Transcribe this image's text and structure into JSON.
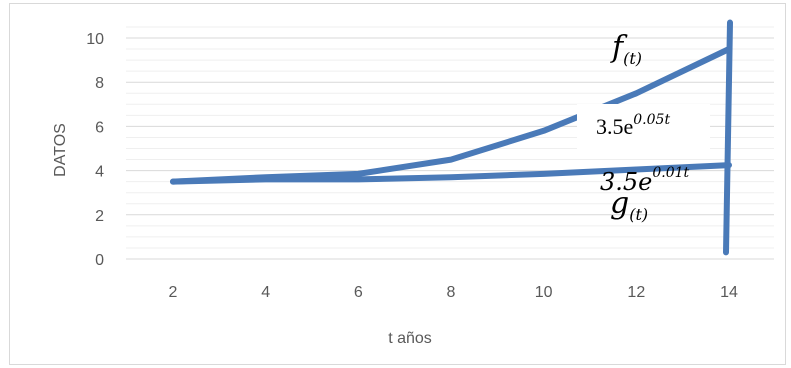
{
  "chart_data": {
    "type": "line",
    "x": [
      2,
      4,
      6,
      8,
      10,
      12,
      14
    ],
    "series": [
      {
        "name": "f(t) = 3.5e^0.05t",
        "values": [
          3.5,
          3.7,
          3.85,
          4.5,
          5.8,
          7.5,
          9.5
        ],
        "color": "#4a7ab8"
      },
      {
        "name": "g(t) = 3.5e^0.01t",
        "values": [
          3.5,
          3.6,
          3.6,
          3.7,
          3.85,
          4.05,
          4.25
        ],
        "color": "#4a7ab8"
      }
    ],
    "vertical_line": {
      "x": 14,
      "y_from": 0.3,
      "y_to": 10.7,
      "color": "#4a7ab8"
    },
    "xlabel": "t años",
    "ylabel": "DATOS",
    "xticks": [
      "2",
      "4",
      "6",
      "8",
      "10",
      "12",
      "14"
    ],
    "yticks": [
      "0",
      "2",
      "4",
      "6",
      "8",
      "10"
    ],
    "ylim": [
      0,
      10.5
    ],
    "grid": true,
    "annotations": {
      "f_label": {
        "base": "f",
        "sub": "(t)"
      },
      "f_formula": {
        "base": "3.5e",
        "exp": "0.05t"
      },
      "g_formula": {
        "base": "3.5e",
        "exp": "0.01t"
      },
      "g_label": {
        "base": "g",
        "sub": "(t)"
      }
    }
  }
}
